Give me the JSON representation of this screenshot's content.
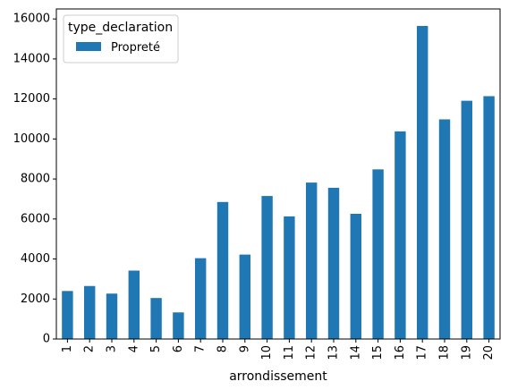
{
  "chart_data": {
    "type": "bar",
    "categories": [
      "1",
      "2",
      "3",
      "4",
      "5",
      "6",
      "7",
      "8",
      "9",
      "10",
      "11",
      "12",
      "13",
      "14",
      "15",
      "16",
      "17",
      "18",
      "19",
      "20"
    ],
    "series": [
      {
        "name": "Propreté",
        "color": "#1f77b4",
        "values": [
          2400,
          2650,
          2270,
          3420,
          2050,
          1330,
          4040,
          6850,
          4220,
          7150,
          6130,
          7820,
          7560,
          6260,
          8480,
          10380,
          15650,
          10980,
          11910,
          12140
        ]
      }
    ],
    "title": "",
    "xlabel": "arrondissement",
    "ylabel": "",
    "ylim": [
      0,
      16500
    ],
    "yticks": [
      0,
      2000,
      4000,
      6000,
      8000,
      10000,
      12000,
      14000,
      16000
    ],
    "legend": {
      "title": "type_declaration",
      "position": "top-left"
    },
    "grid": false
  }
}
